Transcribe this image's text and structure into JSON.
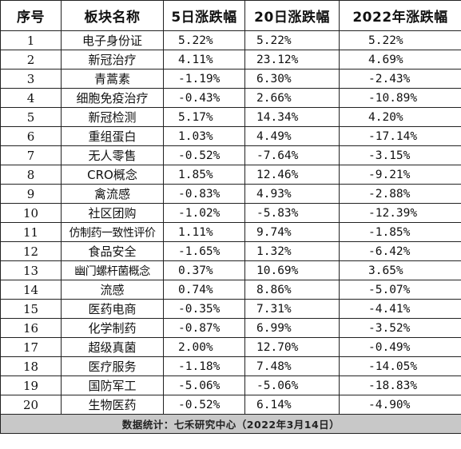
{
  "table": {
    "headers": [
      "序号",
      "板块名称",
      "5日涨跌幅",
      "20日涨跌幅",
      "2022年涨跌幅"
    ],
    "rows": [
      [
        "1",
        "电子身份证",
        "5.22%",
        "5.22%",
        "5.22%"
      ],
      [
        "2",
        "新冠治疗",
        "4.11%",
        "23.12%",
        "4.69%"
      ],
      [
        "3",
        "青蒿素",
        "-1.19%",
        "6.30%",
        "-2.43%"
      ],
      [
        "4",
        "细胞免疫治疗",
        "-0.43%",
        "2.66%",
        "-10.89%"
      ],
      [
        "5",
        "新冠检测",
        "5.17%",
        "14.34%",
        "4.20%"
      ],
      [
        "6",
        "重组蛋白",
        "1.03%",
        "4.49%",
        "-17.14%"
      ],
      [
        "7",
        "无人零售",
        "-0.52%",
        "-7.64%",
        "-3.15%"
      ],
      [
        "8",
        "CRO概念",
        "1.85%",
        "12.46%",
        "-9.21%"
      ],
      [
        "9",
        "禽流感",
        "-0.83%",
        "4.93%",
        "-2.88%"
      ],
      [
        "10",
        "社区团购",
        "-1.02%",
        "-5.83%",
        "-12.39%"
      ],
      [
        "11",
        "仿制药一致性评价",
        "1.11%",
        "9.74%",
        "-1.85%"
      ],
      [
        "12",
        "食品安全",
        "-1.65%",
        "1.32%",
        "-6.42%"
      ],
      [
        "13",
        "幽门螺杆菌概念",
        "0.37%",
        "10.69%",
        "3.65%"
      ],
      [
        "14",
        "流感",
        "0.74%",
        "8.86%",
        "-5.07%"
      ],
      [
        "15",
        "医药电商",
        "-0.35%",
        "7.31%",
        "-4.41%"
      ],
      [
        "16",
        "化学制药",
        "-0.87%",
        "6.99%",
        "-3.52%"
      ],
      [
        "17",
        "超级真菌",
        "2.00%",
        "12.70%",
        "-0.49%"
      ],
      [
        "18",
        "医疗服务",
        "-1.18%",
        "7.48%",
        "-14.05%"
      ],
      [
        "19",
        "国防军工",
        "-5.06%",
        "-5.06%",
        "-18.83%"
      ],
      [
        "20",
        "生物医药",
        "-0.52%",
        "6.14%",
        "-4.90%"
      ]
    ],
    "footer": "数据统计：七禾研究中心（2022年3月14日）"
  }
}
